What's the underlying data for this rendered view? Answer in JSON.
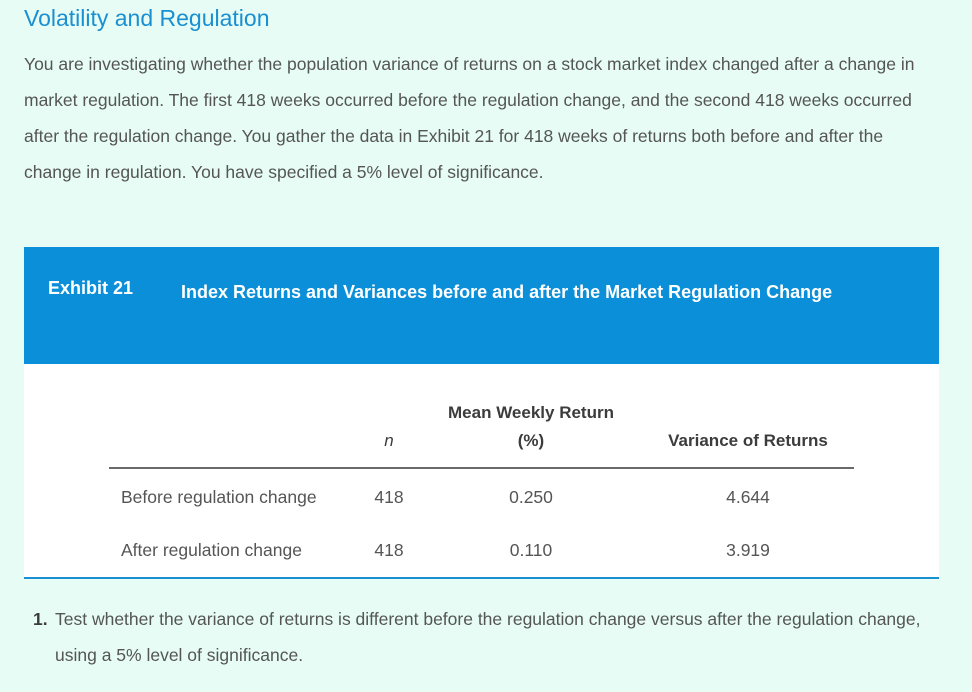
{
  "heading": "Volatility and Regulation",
  "intro": "You are investigating whether the population variance of returns on a stock market index changed after a change in market regulation. The first 418 weeks occurred before the regulation change, and the second 418 weeks occurred after the regulation change. You gather the data in Exhibit 21 for 418 weeks of returns both before and after the change in regulation. You have specified a 5% level of significance.",
  "exhibit": {
    "label": "Exhibit 21",
    "title": "Index Returns and Variances before and after the Market Regulation Change",
    "columns": {
      "n": "n",
      "mean_line1": "Mean Weekly Return",
      "mean_line2": "(%)",
      "variance": "Variance of Returns"
    },
    "rows": [
      {
        "label": "Before regulation change",
        "n": "418",
        "mean": "0.250",
        "variance": "4.644"
      },
      {
        "label": "After regulation change",
        "n": "418",
        "mean": "0.110",
        "variance": "3.919"
      }
    ]
  },
  "question": {
    "number": "1.",
    "text": "Test whether the variance of returns is different before the regulation change versus after the regulation change, using a 5% level of significance."
  },
  "colors": {
    "accent": "#0b8fd9",
    "background": "#e6fcf4",
    "heading": "#1a8fd1"
  }
}
